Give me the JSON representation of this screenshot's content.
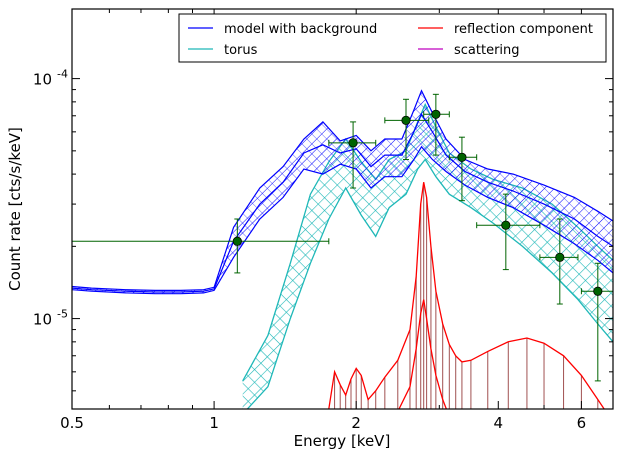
{
  "chart_data": {
    "type": "line",
    "title": "",
    "xlabel": "Energy [keV]",
    "ylabel": "Count rate [cts/s/keV]",
    "x_scale": "log",
    "y_scale": "log",
    "xlim": [
      0.5,
      7.0
    ],
    "ylim": [
      4.2e-06,
      0.000195
    ],
    "x_ticks": [
      {
        "value": 0.5,
        "label": "0.5"
      },
      {
        "value": 1,
        "label": "1"
      },
      {
        "value": 2,
        "label": "2"
      },
      {
        "value": 4,
        "label": "4"
      },
      {
        "value": 6,
        "label": "6"
      }
    ],
    "y_ticks": [
      {
        "value": 1e-05,
        "label": "10-5"
      },
      {
        "value": 0.0001,
        "label": "10-4"
      }
    ],
    "legend": {
      "placement": "top-right",
      "columns": 2,
      "entries": [
        {
          "name": "model with background",
          "color": "#0000ff"
        },
        {
          "name": "torus",
          "color": "#1fb8b8"
        },
        {
          "name": "reflection component",
          "color": "#ff0000"
        },
        {
          "name": "scattering",
          "color": "#bf00bf"
        }
      ]
    },
    "series": [
      {
        "name": "model with background",
        "color": "#0000ff",
        "style": "hatched band",
        "x": [
          0.5,
          0.55,
          0.65,
          0.75,
          0.85,
          0.95,
          1.0,
          1.1,
          1.25,
          1.4,
          1.55,
          1.7,
          1.85,
          2.0,
          2.15,
          2.3,
          2.5,
          2.65,
          2.75,
          2.9,
          3.1,
          3.4,
          3.8,
          4.3,
          5.0,
          5.8,
          6.5,
          7.0
        ],
        "lower": [
          1.32e-05,
          1.3e-05,
          1.28e-05,
          1.27e-05,
          1.27e-05,
          1.28e-05,
          1.31e-05,
          1.8e-05,
          2.6e-05,
          3.2e-05,
          4.2e-05,
          4e-05,
          4.4e-05,
          4.2e-05,
          3.5e-05,
          3.9e-05,
          3.9e-05,
          4.6e-05,
          5.2e-05,
          4.6e-05,
          4.1e-05,
          3.6e-05,
          3.2e-05,
          2.9e-05,
          2.45e-05,
          2.05e-05,
          1.75e-05,
          1.55e-05
        ],
        "upper": [
          1.36e-05,
          1.34e-05,
          1.32e-05,
          1.31e-05,
          1.31e-05,
          1.32e-05,
          1.35e-05,
          2.4e-05,
          3.5e-05,
          4.3e-05,
          5.6e-05,
          6.6e-05,
          5.5e-05,
          5.8e-05,
          5e-05,
          5.6e-05,
          5.6e-05,
          7.4e-05,
          8.9e-05,
          7.2e-05,
          5.6e-05,
          4.6e-05,
          4.2e-05,
          4e-05,
          3.6e-05,
          3.2e-05,
          2.8e-05,
          2.55e-05
        ],
        "model": [
          1.34e-05,
          1.32e-05,
          1.3e-05,
          1.29e-05,
          1.29e-05,
          1.3e-05,
          1.33e-05,
          2.1e-05,
          3e-05,
          3.7e-05,
          4.9e-05,
          5.3e-05,
          4.9e-05,
          5.1e-05,
          4.3e-05,
          4.8e-05,
          4.8e-05,
          6e-05,
          7.1e-05,
          6e-05,
          4.8e-05,
          4.1e-05,
          3.7e-05,
          3.4e-05,
          3e-05,
          2.6e-05,
          2.2e-05,
          2e-05
        ]
      },
      {
        "name": "torus",
        "color": "#1fb8b8",
        "style": "cross-hatched band",
        "x": [
          1.15,
          1.3,
          1.45,
          1.6,
          1.75,
          1.9,
          2.05,
          2.2,
          2.35,
          2.55,
          2.7,
          2.8,
          2.95,
          3.15,
          3.5,
          3.9,
          4.5,
          5.2,
          5.9,
          6.5,
          7.0
        ],
        "lower": [
          4e-06,
          5.2e-06,
          1e-05,
          1.7e-05,
          2.6e-05,
          3.5e-05,
          2.7e-05,
          2.2e-05,
          2.9e-05,
          3.3e-05,
          4.2e-05,
          4.6e-05,
          3.9e-05,
          3.3e-05,
          2.9e-05,
          2.5e-05,
          2e-05,
          1.55e-05,
          1.2e-05,
          9.5e-06,
          8e-06
        ],
        "upper": [
          5.5e-06,
          8.5e-06,
          1.7e-05,
          3.3e-05,
          4.5e-05,
          5.6e-05,
          4.5e-05,
          3.8e-05,
          4.6e-05,
          5e-05,
          6.6e-05,
          7.8e-05,
          6.3e-05,
          4.9e-05,
          4.2e-05,
          3.8e-05,
          3.5e-05,
          3e-05,
          2.4e-05,
          2e-05,
          1.75e-05
        ]
      },
      {
        "name": "reflection component",
        "color": "#ff0000",
        "style": "lines",
        "x": [
          1.75,
          1.8,
          1.85,
          1.9,
          1.95,
          2.0,
          2.05,
          2.12,
          2.2,
          2.3,
          2.45,
          2.6,
          2.68,
          2.74,
          2.78,
          2.82,
          2.88,
          2.95,
          3.05,
          3.15,
          3.25,
          3.35,
          3.5,
          3.8,
          4.2,
          4.6,
          5.0,
          5.5,
          6.0,
          6.5,
          7.0
        ],
        "upper": [
          4.2e-06,
          6e-06,
          5.3e-06,
          4.8e-06,
          5.6e-06,
          6.2e-06,
          5.8e-06,
          4.6e-06,
          5e-06,
          5.7e-06,
          6.7e-06,
          9e-06,
          1.5e-05,
          3e-05,
          3.7e-05,
          3.2e-05,
          2e-05,
          1.3e-05,
          9.5e-06,
          7.8e-06,
          7e-06,
          6.6e-06,
          6.7e-06,
          7.3e-06,
          8e-06,
          8.3e-06,
          7.9e-06,
          7e-06,
          5.8e-06,
          4.6e-06,
          3.7e-06
        ],
        "lower": [
          3e-06,
          3.6e-06,
          3.2e-06,
          3e-06,
          3.3e-06,
          3.6e-06,
          3.4e-06,
          3e-06,
          3.1e-06,
          3.5e-06,
          4.1e-06,
          5.2e-06,
          7.5e-06,
          1.05e-05,
          1.2e-05,
          1e-05,
          7.5e-06,
          5.8e-06,
          4.6e-06,
          3.9e-06,
          3.5e-06,
          3.2e-06,
          3e-06,
          3e-06,
          3e-06,
          3e-06,
          3e-06,
          3e-06,
          3e-06,
          3e-06,
          3e-06
        ]
      },
      {
        "name": "scattering",
        "color": "#bf00bf",
        "style": "line",
        "x": [],
        "y": []
      }
    ],
    "data_points": {
      "color": "#006400",
      "points": [
        {
          "x": 1.12,
          "y": 2.1e-05,
          "xerr": [
            0.5,
            1.75
          ],
          "yerr": [
            1.55e-05,
            2.6e-05
          ]
        },
        {
          "x": 1.97,
          "y": 5.4e-05,
          "xerr": [
            1.75,
            2.2
          ],
          "yerr": [
            3.5e-05,
            6.6e-05
          ]
        },
        {
          "x": 2.55,
          "y": 6.7e-05,
          "xerr": [
            2.3,
            2.85
          ],
          "yerr": [
            4.6e-05,
            8.2e-05
          ]
        },
        {
          "x": 2.95,
          "y": 7.1e-05,
          "xerr": [
            2.78,
            3.15
          ],
          "yerr": [
            4.8e-05,
            8.6e-05
          ]
        },
        {
          "x": 3.35,
          "y": 4.7e-05,
          "xerr": [
            3.15,
            3.6
          ],
          "yerr": [
            3.1e-05,
            5.7e-05
          ]
        },
        {
          "x": 4.15,
          "y": 2.45e-05,
          "xerr": [
            3.6,
            4.9
          ],
          "yerr": [
            1.6e-05,
            3.3e-05
          ]
        },
        {
          "x": 5.4,
          "y": 1.8e-05,
          "xerr": [
            4.9,
            5.9
          ],
          "yerr": [
            1.15e-05,
            2.6e-05
          ]
        },
        {
          "x": 6.5,
          "y": 1.3e-05,
          "xerr": [
            6.0,
            7.0
          ],
          "yerr": [
            5.5e-06,
            1.7e-05
          ]
        }
      ]
    },
    "grid": false
  }
}
